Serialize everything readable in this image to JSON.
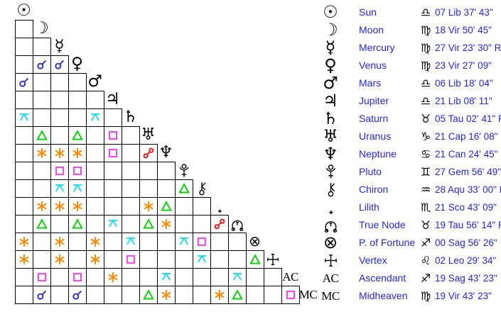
{
  "colors": {
    "background": "#ffffff",
    "grid_line": "#000000",
    "planet_glyph": "#000000",
    "legend_text": "#2626d9",
    "conjunction": "#2e2ecc",
    "sextile": "#ff8800",
    "square": "#fb3cfb",
    "trine": "#00d000",
    "opposition": "#f01010",
    "quincunx": "#20d8f0"
  },
  "grid": {
    "planets": [
      {
        "id": "sun",
        "name": "Sun",
        "render": "text",
        "glyph": "☉",
        "icon": "sun-icon"
      },
      {
        "id": "moon",
        "name": "Moon",
        "render": "text",
        "glyph": "☽",
        "icon": "moon-icon"
      },
      {
        "id": "mercury",
        "name": "Mercury",
        "render": "text",
        "glyph": "☿",
        "icon": "mercury-icon"
      },
      {
        "id": "venus",
        "name": "Venus",
        "render": "text",
        "glyph": "♀",
        "icon": "venus-icon"
      },
      {
        "id": "mars",
        "name": "Mars",
        "render": "text",
        "glyph": "♂",
        "icon": "mars-icon"
      },
      {
        "id": "jupiter",
        "name": "Jupiter",
        "render": "text",
        "glyph": "♃",
        "icon": "jupiter-icon"
      },
      {
        "id": "saturn",
        "name": "Saturn",
        "render": "text",
        "glyph": "♄",
        "icon": "saturn-icon"
      },
      {
        "id": "uranus",
        "name": "Uranus",
        "render": "text",
        "glyph": "♅",
        "icon": "uranus-icon"
      },
      {
        "id": "neptune",
        "name": "Neptune",
        "render": "text",
        "glyph": "♆",
        "icon": "neptune-icon"
      },
      {
        "id": "pluto",
        "name": "Pluto",
        "render": "svg",
        "glyph": "",
        "icon": "pluto-icon"
      },
      {
        "id": "chiron",
        "name": "Chiron",
        "render": "svg",
        "glyph": "",
        "icon": "chiron-icon"
      },
      {
        "id": "lilith",
        "name": "Lilith",
        "render": "svg",
        "glyph": "",
        "icon": "lilith-icon"
      },
      {
        "id": "truenode",
        "name": "True Node",
        "render": "svg",
        "glyph": "",
        "icon": "true-node-icon"
      },
      {
        "id": "fortune",
        "name": "P. of Fortune",
        "render": "text",
        "glyph": "⊗",
        "icon": "part-of-fortune-icon"
      },
      {
        "id": "vertex",
        "name": "Vertex",
        "render": "svg",
        "glyph": "",
        "icon": "vertex-icon"
      },
      {
        "id": "ac",
        "name": "Ascendant",
        "render": "acmc",
        "glyph": "AC",
        "icon": "ascendant-label"
      },
      {
        "id": "mc",
        "name": "Midheaven",
        "render": "acmc",
        "glyph": "MC",
        "icon": "midheaven-label"
      }
    ],
    "aspects": [
      {
        "row": 3,
        "col": 1,
        "type": "conjunction"
      },
      {
        "row": 3,
        "col": 2,
        "type": "conjunction"
      },
      {
        "row": 4,
        "col": 0,
        "type": "conjunction"
      },
      {
        "row": 6,
        "col": 0,
        "type": "quincunx"
      },
      {
        "row": 6,
        "col": 4,
        "type": "quincunx"
      },
      {
        "row": 7,
        "col": 1,
        "type": "trine"
      },
      {
        "row": 7,
        "col": 3,
        "type": "trine"
      },
      {
        "row": 7,
        "col": 5,
        "type": "square"
      },
      {
        "row": 8,
        "col": 1,
        "type": "sextile"
      },
      {
        "row": 8,
        "col": 2,
        "type": "sextile"
      },
      {
        "row": 8,
        "col": 3,
        "type": "sextile"
      },
      {
        "row": 8,
        "col": 5,
        "type": "square"
      },
      {
        "row": 8,
        "col": 7,
        "type": "opposition"
      },
      {
        "row": 9,
        "col": 2,
        "type": "square"
      },
      {
        "row": 9,
        "col": 3,
        "type": "square"
      },
      {
        "row": 10,
        "col": 2,
        "type": "quincunx"
      },
      {
        "row": 10,
        "col": 3,
        "type": "quincunx"
      },
      {
        "row": 10,
        "col": 9,
        "type": "trine"
      },
      {
        "row": 11,
        "col": 1,
        "type": "sextile"
      },
      {
        "row": 11,
        "col": 2,
        "type": "sextile"
      },
      {
        "row": 11,
        "col": 3,
        "type": "sextile"
      },
      {
        "row": 11,
        "col": 7,
        "type": "sextile"
      },
      {
        "row": 11,
        "col": 8,
        "type": "trine"
      },
      {
        "row": 12,
        "col": 1,
        "type": "trine"
      },
      {
        "row": 12,
        "col": 3,
        "type": "trine"
      },
      {
        "row": 12,
        "col": 5,
        "type": "quincunx"
      },
      {
        "row": 12,
        "col": 7,
        "type": "trine"
      },
      {
        "row": 12,
        "col": 8,
        "type": "sextile"
      },
      {
        "row": 12,
        "col": 11,
        "type": "opposition"
      },
      {
        "row": 13,
        "col": 0,
        "type": "sextile"
      },
      {
        "row": 13,
        "col": 2,
        "type": "sextile"
      },
      {
        "row": 13,
        "col": 4,
        "type": "sextile"
      },
      {
        "row": 13,
        "col": 6,
        "type": "quincunx"
      },
      {
        "row": 13,
        "col": 9,
        "type": "quincunx"
      },
      {
        "row": 13,
        "col": 10,
        "type": "square"
      },
      {
        "row": 14,
        "col": 0,
        "type": "sextile"
      },
      {
        "row": 14,
        "col": 2,
        "type": "sextile"
      },
      {
        "row": 14,
        "col": 4,
        "type": "sextile"
      },
      {
        "row": 14,
        "col": 6,
        "type": "square"
      },
      {
        "row": 14,
        "col": 10,
        "type": "quincunx"
      },
      {
        "row": 14,
        "col": 13,
        "type": "trine"
      },
      {
        "row": 15,
        "col": 1,
        "type": "square"
      },
      {
        "row": 15,
        "col": 3,
        "type": "square"
      },
      {
        "row": 15,
        "col": 5,
        "type": "sextile"
      },
      {
        "row": 15,
        "col": 8,
        "type": "quincunx"
      },
      {
        "row": 15,
        "col": 12,
        "type": "quincunx"
      },
      {
        "row": 16,
        "col": 1,
        "type": "conjunction"
      },
      {
        "row": 16,
        "col": 3,
        "type": "conjunction"
      },
      {
        "row": 16,
        "col": 7,
        "type": "trine"
      },
      {
        "row": 16,
        "col": 8,
        "type": "sextile"
      },
      {
        "row": 16,
        "col": 11,
        "type": "sextile"
      },
      {
        "row": 16,
        "col": 12,
        "type": "trine"
      },
      {
        "row": 16,
        "col": 15,
        "type": "square"
      }
    ]
  },
  "legend": {
    "rows": [
      {
        "name": "Sun",
        "sign": "♎",
        "sign_name": "Libra",
        "position": "07 Lib 37' 43\""
      },
      {
        "name": "Moon",
        "sign": "♍",
        "sign_name": "Virgo",
        "position": "18 Vir 50' 45\""
      },
      {
        "name": "Mercury",
        "sign": "♍",
        "sign_name": "Virgo",
        "position": "27 Vir 23' 30\" R"
      },
      {
        "name": "Venus",
        "sign": "♍",
        "sign_name": "Virgo",
        "position": "23 Vir 27' 09\""
      },
      {
        "name": "Mars",
        "sign": "♎",
        "sign_name": "Libra",
        "position": "06 Lib 18' 04\""
      },
      {
        "name": "Jupiter",
        "sign": "♎",
        "sign_name": "Libra",
        "position": "21 Lib 08' 11\""
      },
      {
        "name": "Saturn",
        "sign": "♉",
        "sign_name": "Taurus",
        "position": "05 Tau 02' 41\" R"
      },
      {
        "name": "Uranus",
        "sign": "♑",
        "sign_name": "Capricorn",
        "position": "21 Cap 16' 08\""
      },
      {
        "name": "Neptune",
        "sign": "♋",
        "sign_name": "Cancer",
        "position": "21 Can 24' 45\""
      },
      {
        "name": "Pluto",
        "sign": "♊",
        "sign_name": "Gemini",
        "position": "27 Gem 56' 49\" R"
      },
      {
        "name": "Chiron",
        "sign": "♒",
        "sign_name": "Aquarius",
        "position": "28 Aqu 33' 00\" R"
      },
      {
        "name": "Lilith",
        "sign": "♏",
        "sign_name": "Scorpio",
        "position": "21 Sco 43' 09\""
      },
      {
        "name": "True Node",
        "sign": "♉",
        "sign_name": "Taurus",
        "position": "19 Tau 56' 14\" R"
      },
      {
        "name": "P. of Fortune",
        "sign": "♐",
        "sign_name": "Sagittarius",
        "position": "00 Sag 56' 26\""
      },
      {
        "name": "Vertex",
        "sign": "♌",
        "sign_name": "Leo",
        "position": "02 Leo 29' 34\""
      },
      {
        "name": "Ascendant",
        "sign": "♐",
        "sign_name": "Sagittarius",
        "position": "19 Sag 43' 23\""
      },
      {
        "name": "Midheaven",
        "sign": "♍",
        "sign_name": "Virgo",
        "position": "19 Vir 43' 23\""
      }
    ]
  }
}
